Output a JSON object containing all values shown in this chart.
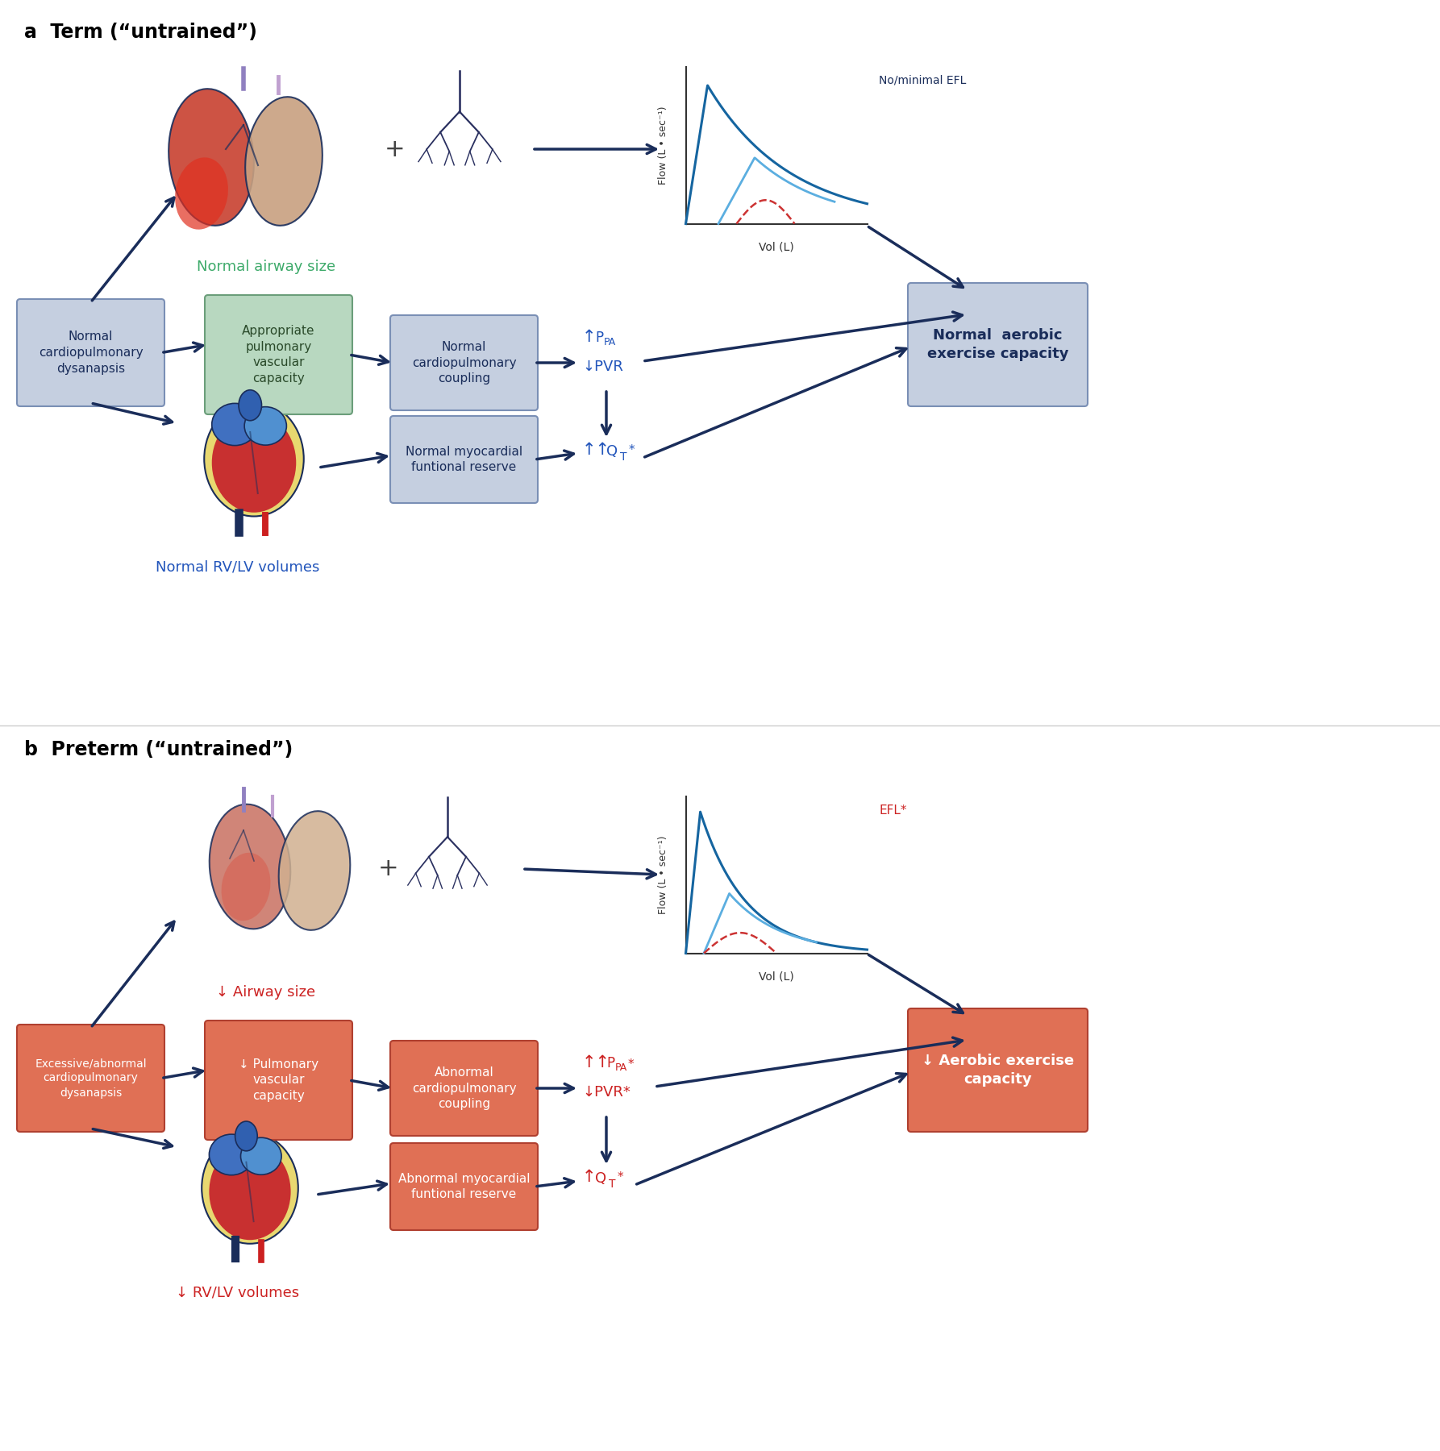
{
  "title_a": "a  Term (“untrained”)",
  "title_b": "b  Preterm (“untrained”)",
  "arrow_color": "#1a2d5a",
  "panel_a": {
    "box_cardio": {
      "text": "Normal\ncardiopulmonary\ndysanapsis",
      "fc": "#c5cfe0",
      "ec": "#7a8fb5"
    },
    "box_pulm": {
      "text": "Appropriate\npulmonary\nvascular\ncapacity",
      "fc": "#b8d8c0",
      "ec": "#6b9e7a"
    },
    "box_coupling": {
      "text": "Normal\ncardiopulmonary\ncoupling",
      "fc": "#c5cfe0",
      "ec": "#7a8fb5"
    },
    "box_myo": {
      "text": "Normal myocardial\nfuntional reserve",
      "fc": "#c5cfe0",
      "ec": "#7a8fb5"
    },
    "box_aerobic": {
      "text": "Normal  aerobic\nexercise capacity",
      "fc": "#c5cfe0",
      "ec": "#7a8fb5"
    },
    "label_airway": {
      "text": "Normal airway size",
      "color": "#3daa6a"
    },
    "label_rvlv": {
      "text": "Normal RV/LV volumes",
      "color": "#2255bb"
    },
    "label_efl": {
      "text": "No/minimal EFL",
      "color": "#1a2d5a"
    },
    "ppa_color": "#2255bb",
    "qt_color": "#2255bb"
  },
  "panel_b": {
    "box_cardio": {
      "text": "Excessive/abnormal\ncardiopulmonary\ndysanapsis",
      "fc": "#e07055",
      "ec": "#b04030",
      "tc": "#ffffff"
    },
    "box_pulm": {
      "text": "↓ Pulmonary\nvascular\ncapacity",
      "fc": "#e07055",
      "ec": "#b04030",
      "tc": "#ffffff"
    },
    "box_coupling": {
      "text": "Abnormal\ncardiopulmonary\ncoupling",
      "fc": "#e07055",
      "ec": "#b04030",
      "tc": "#ffffff"
    },
    "box_myo": {
      "text": "Abnormal myocardial\nfuntional reserve",
      "fc": "#e07055",
      "ec": "#b04030",
      "tc": "#ffffff"
    },
    "box_aerobic": {
      "text": "↓ Aerobic exercise\ncapacity",
      "fc": "#e07055",
      "ec": "#b04030",
      "tc": "#ffffff"
    },
    "label_airway": {
      "text": "↓ Airway size",
      "color": "#cc2222"
    },
    "label_rvlv": {
      "text": "↓ RV/LV volumes",
      "color": "#cc2222"
    },
    "label_efl": {
      "text": "EFL*",
      "color": "#cc2222"
    },
    "ppa_color": "#cc2222",
    "qt_color": "#cc2222"
  }
}
